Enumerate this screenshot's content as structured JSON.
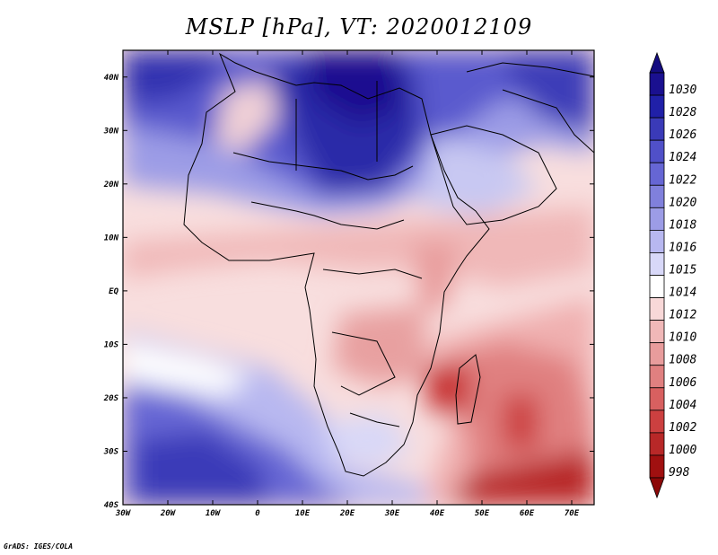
{
  "title": "MSLP [hPa], VT: 2020012109",
  "credit": "GrADS: IGES/COLA",
  "map": {
    "region": "Africa",
    "field": "mean sea level pressure",
    "units": "hPa",
    "lon_range": [
      -30,
      75
    ],
    "lat_range": [
      -40,
      45
    ],
    "x_ticks": [
      "30W",
      "20W",
      "10W",
      "0",
      "10E",
      "20E",
      "30E",
      "40E",
      "50E",
      "60E",
      "70E"
    ],
    "y_ticks": [
      "40N",
      "30N",
      "20N",
      "10N",
      "EQ",
      "10S",
      "20S",
      "30S",
      "40S"
    ]
  },
  "colorbar": {
    "levels": [
      "1030",
      "1028",
      "1026",
      "1024",
      "1022",
      "1020",
      "1018",
      "1016",
      "1015",
      "1014",
      "1012",
      "1010",
      "1008",
      "1006",
      "1004",
      "1002",
      "1000",
      "998"
    ],
    "colors": [
      "#1a1090",
      "#2020a8",
      "#3a3ab8",
      "#5050c8",
      "#6666d4",
      "#8080dc",
      "#9c9ce6",
      "#b8b8f0",
      "#d8d8f8",
      "#ffffff",
      "#f8d8d8",
      "#f0b8b8",
      "#e89c9c",
      "#e08080",
      "#d86060",
      "#cc4040",
      "#b82828",
      "#a01010"
    ],
    "top_arrow_color": "#140c80",
    "bottom_arrow_color": "#8c0808"
  }
}
